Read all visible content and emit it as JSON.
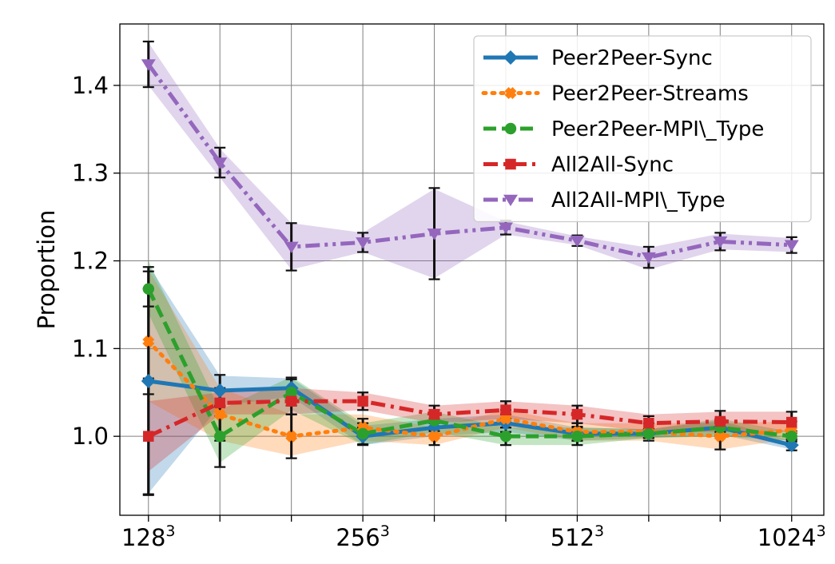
{
  "chart_data": {
    "type": "line",
    "ylabel": "Proportion",
    "xlabel": "",
    "ylim": [
      0.91,
      1.47
    ],
    "yticks": [
      1.0,
      1.1,
      1.2,
      1.3,
      1.4
    ],
    "ytick_labels": [
      "1.0",
      "1.1",
      "1.2",
      "1.3",
      "1.4"
    ],
    "x": [
      0,
      1,
      2,
      3,
      4,
      5,
      6,
      7,
      8,
      9
    ],
    "xlim": [
      -0.4,
      9.45
    ],
    "xtick_labels": [
      {
        "x": 0,
        "base": "128",
        "exp": "3"
      },
      {
        "x": 3,
        "base": "256",
        "exp": "3"
      },
      {
        "x": 6,
        "base": "512",
        "exp": "3"
      },
      {
        "x": 9,
        "base": "1024",
        "exp": "3"
      }
    ],
    "grid": true,
    "legend_position": "top-right",
    "series": [
      {
        "name": "Peer2Peer-Sync",
        "color": "#1f77b4",
        "marker": "diamond",
        "dash": "solid",
        "values": [
          1.063,
          1.052,
          1.055,
          1.0,
          1.01,
          1.015,
          1.003,
          1.003,
          1.01,
          0.99
        ],
        "band_low": [
          0.935,
          1.035,
          1.045,
          0.99,
          1.0,
          1.005,
          0.995,
          0.998,
          1.002,
          0.985
        ],
        "band_high": [
          1.195,
          1.069,
          1.066,
          1.012,
          1.02,
          1.025,
          1.01,
          1.008,
          1.018,
          0.995
        ],
        "err": [
          0.13,
          0.018,
          0.012,
          0.01,
          0.01,
          0.01,
          0.008,
          0.005,
          0.008,
          0.006
        ]
      },
      {
        "name": "Peer2Peer-Streams",
        "color": "#ff7f0e",
        "marker": "x",
        "dash": "dotted",
        "values": [
          1.108,
          1.025,
          1.0,
          1.01,
          1.0,
          1.02,
          1.005,
          1.005,
          1.0,
          1.007
        ],
        "band_low": [
          1.04,
          0.995,
          0.978,
          0.995,
          0.99,
          1.01,
          0.995,
          0.995,
          0.985,
          0.997
        ],
        "band_high": [
          1.19,
          1.055,
          1.025,
          1.025,
          1.01,
          1.03,
          1.015,
          1.015,
          1.015,
          1.017
        ],
        "err": [
          0.06,
          0.03,
          0.025,
          0.01,
          0.01,
          0.01,
          0.01,
          0.01,
          0.015,
          0.01
        ]
      },
      {
        "name": "Peer2Peer-MPI\\_Type",
        "color": "#2ca02c",
        "marker": "circle",
        "dash": "dashed",
        "values": [
          1.168,
          1.0,
          1.05,
          1.003,
          1.018,
          1.0,
          1.0,
          1.003,
          1.01,
          1.0
        ],
        "band_low": [
          1.14,
          0.97,
          1.03,
          0.99,
          1.005,
          0.99,
          0.99,
          0.998,
          1.0,
          0.995
        ],
        "band_high": [
          1.2,
          1.03,
          1.068,
          1.015,
          1.028,
          1.01,
          1.01,
          1.008,
          1.02,
          1.005
        ],
        "err": [
          0.02,
          0.035,
          0.015,
          0.012,
          0.012,
          0.01,
          0.01,
          0.005,
          0.01,
          0.006
        ]
      },
      {
        "name": "All2All-Sync",
        "color": "#d62728",
        "marker": "square",
        "dash": "dashdot",
        "values": [
          1.0,
          1.038,
          1.04,
          1.04,
          1.025,
          1.03,
          1.025,
          1.015,
          1.017,
          1.016
        ],
        "band_low": [
          0.96,
          1.025,
          1.025,
          1.03,
          1.015,
          1.02,
          1.015,
          1.005,
          1.005,
          1.005
        ],
        "band_high": [
          1.04,
          1.05,
          1.055,
          1.05,
          1.035,
          1.04,
          1.035,
          1.025,
          1.028,
          1.028
        ],
        "err": [
          0.066,
          0.015,
          0.015,
          0.01,
          0.01,
          0.01,
          0.01,
          0.008,
          0.012,
          0.012
        ]
      },
      {
        "name": "All2All-MPI\\_Type",
        "color": "#9467bd",
        "marker": "triangle-down",
        "dash": "dashdotdot",
        "values": [
          1.424,
          1.312,
          1.216,
          1.221,
          1.231,
          1.238,
          1.223,
          1.204,
          1.222,
          1.218
        ],
        "band_low": [
          1.4,
          1.295,
          1.19,
          1.21,
          1.18,
          1.23,
          1.218,
          1.19,
          1.213,
          1.21
        ],
        "band_high": [
          1.449,
          1.328,
          1.243,
          1.232,
          1.282,
          1.245,
          1.228,
          1.215,
          1.231,
          1.226
        ],
        "err": [
          0.026,
          0.017,
          0.027,
          0.011,
          0.052,
          0.008,
          0.006,
          0.012,
          0.01,
          0.009
        ]
      }
    ]
  }
}
